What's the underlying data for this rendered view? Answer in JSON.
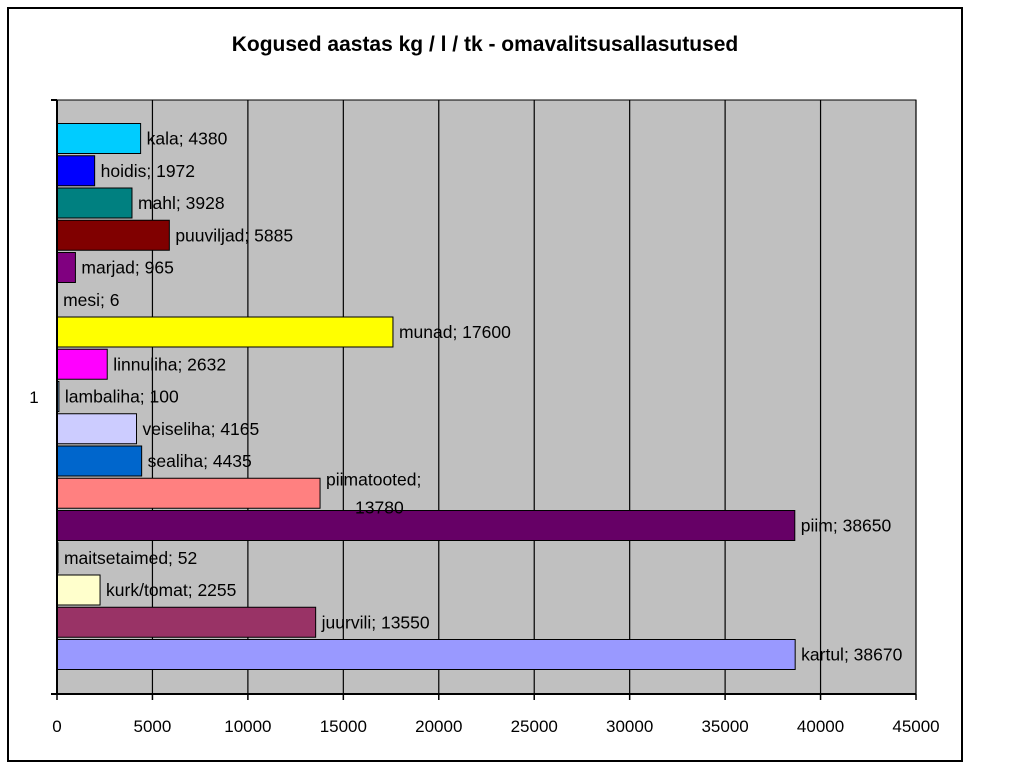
{
  "colors": {
    "plot_background": "#c0c0c0",
    "gridline": "#000000",
    "axis": "#000000"
  },
  "chart_data": {
    "type": "bar",
    "orientation": "horizontal",
    "title": "Kogused aastas kg / l / tk - omavalitsusallasutused",
    "xlabel": "",
    "ylabel": "",
    "category_axis_label": "1",
    "xlim": [
      0,
      45000
    ],
    "x_ticks": [
      0,
      5000,
      10000,
      15000,
      20000,
      25000,
      30000,
      35000,
      40000,
      45000
    ],
    "grid": "vertical major gridlines",
    "legend": "none",
    "series": [
      {
        "name": "kala",
        "value": 4380,
        "label": "kala; 4380",
        "color": "#00ccff"
      },
      {
        "name": "hoidis",
        "value": 1972,
        "label": "hoidis; 1972",
        "color": "#0000ff"
      },
      {
        "name": "mahl",
        "value": 3928,
        "label": "mahl; 3928",
        "color": "#008080"
      },
      {
        "name": "puuviljad",
        "value": 5885,
        "label": "puuviljad; 5885",
        "color": "#800000"
      },
      {
        "name": "marjad",
        "value": 965,
        "label": "marjad; 965",
        "color": "#800080"
      },
      {
        "name": "mesi",
        "value": 6,
        "label": "mesi; 6",
        "color": "#ffff99"
      },
      {
        "name": "munad",
        "value": 17600,
        "label": "munad; 17600",
        "color": "#ffff00"
      },
      {
        "name": "linnuliha",
        "value": 2632,
        "label": "linnuliha; 2632",
        "color": "#ff00ff"
      },
      {
        "name": "lambaliha",
        "value": 100,
        "label": "lambaliha; 100",
        "color": "#99ccff"
      },
      {
        "name": "veiseliha",
        "value": 4165,
        "label": "veiseliha; 4165",
        "color": "#ccccff"
      },
      {
        "name": "sealiha",
        "value": 4435,
        "label": "sealiha; 4435",
        "color": "#0066cc"
      },
      {
        "name": "piimatooted",
        "value": 13780,
        "label": "piimatooted; 13780",
        "color": "#ff8080"
      },
      {
        "name": "piim",
        "value": 38650,
        "label": "piim; 38650",
        "color": "#660066"
      },
      {
        "name": "maitsetaimed",
        "value": 52,
        "label": "maitsetaimed; 52",
        "color": "#ccffcc"
      },
      {
        "name": "kurk/tomat",
        "value": 2255,
        "label": "kurk/tomat; 2255",
        "color": "#ffffcc"
      },
      {
        "name": "juurvili",
        "value": 13550,
        "label": "juurvili; 13550",
        "color": "#993366"
      },
      {
        "name": "kartul",
        "value": 38670,
        "label": "kartul; 38670",
        "color": "#9999ff"
      }
    ]
  }
}
